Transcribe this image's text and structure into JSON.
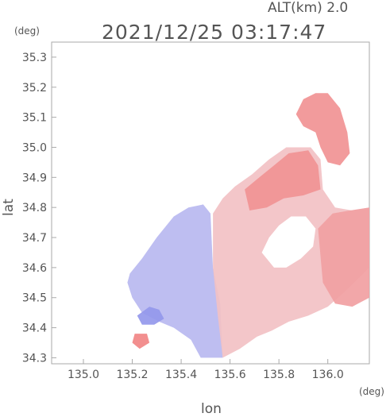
{
  "header": {
    "alt_label": "ALT(km) 2.0",
    "datetime": "2021/12/25 03:17:47"
  },
  "colors": {
    "positive": "#f06a6a",
    "negative": "#7c82ea",
    "neutral": "#f3f0f5",
    "frame": "#aaaaaa",
    "text": "#555555"
  },
  "chart_data": {
    "type": "heatmap",
    "title": "2021/12/25 03:17:47",
    "subtitle": "ALT(km) 2.0",
    "xlabel": "lon",
    "ylabel": "lat",
    "x_unit": "(deg)",
    "y_unit": "(deg)",
    "xlim": [
      134.87,
      136.17
    ],
    "ylim": [
      34.28,
      35.35
    ],
    "x_ticks": [
      135.0,
      135.2,
      135.4,
      135.6,
      135.8,
      136.0
    ],
    "x_tick_labels": [
      "135.0",
      "135.2",
      "135.4",
      "135.6",
      "135.8",
      "136.0"
    ],
    "y_ticks": [
      34.3,
      34.4,
      34.5,
      34.6,
      34.7,
      34.8,
      34.9,
      35.0,
      35.1,
      35.2,
      35.3
    ],
    "y_tick_labels": [
      "34.3",
      "34.4",
      "34.5",
      "34.6",
      "34.7",
      "34.8",
      "34.9",
      "35.0",
      "35.1",
      "35.2",
      "35.3"
    ],
    "grid": false,
    "colorscale": "diverging blue-white-red (radial velocity)",
    "regions": [
      {
        "name": "approaching (blue)",
        "sign": -1,
        "value": -0.5,
        "points": [
          [
            135.19,
            34.58
          ],
          [
            135.24,
            34.63
          ],
          [
            135.3,
            34.7
          ],
          [
            135.37,
            34.77
          ],
          [
            135.43,
            34.8
          ],
          [
            135.49,
            34.81
          ],
          [
            135.52,
            34.78
          ],
          [
            135.53,
            34.6
          ],
          [
            135.56,
            34.48
          ],
          [
            135.57,
            34.3
          ],
          [
            135.48,
            34.3
          ],
          [
            135.44,
            34.36
          ],
          [
            135.37,
            34.4
          ],
          [
            135.31,
            34.42
          ],
          [
            135.24,
            34.45
          ],
          [
            135.2,
            34.5
          ],
          [
            135.18,
            34.55
          ]
        ]
      },
      {
        "name": "receding sector (light red)",
        "sign": 1,
        "value": 0.35,
        "points": [
          [
            135.53,
            34.78
          ],
          [
            135.57,
            34.83
          ],
          [
            135.62,
            34.87
          ],
          [
            135.69,
            34.91
          ],
          [
            135.76,
            34.96
          ],
          [
            135.83,
            35.0
          ],
          [
            135.93,
            35.0
          ],
          [
            135.97,
            34.96
          ],
          [
            135.98,
            34.86
          ],
          [
            136.03,
            34.8
          ],
          [
            136.1,
            34.79
          ],
          [
            136.17,
            34.8
          ],
          [
            136.17,
            34.6
          ],
          [
            136.07,
            34.52
          ],
          [
            136.0,
            34.47
          ],
          [
            135.92,
            34.44
          ],
          [
            135.84,
            34.42
          ],
          [
            135.77,
            34.39
          ],
          [
            135.71,
            34.37
          ],
          [
            135.64,
            34.33
          ],
          [
            135.57,
            34.3
          ],
          [
            135.55,
            34.44
          ],
          [
            135.53,
            34.6
          ]
        ]
      },
      {
        "name": "receding core (red)",
        "sign": 1,
        "value": 0.7,
        "points": [
          [
            135.66,
            34.86
          ],
          [
            135.72,
            34.9
          ],
          [
            135.78,
            34.94
          ],
          [
            135.84,
            34.98
          ],
          [
            135.92,
            34.99
          ],
          [
            135.96,
            34.94
          ],
          [
            135.97,
            34.86
          ],
          [
            135.9,
            34.84
          ],
          [
            135.82,
            34.83
          ],
          [
            135.75,
            34.8
          ],
          [
            135.68,
            34.79
          ]
        ]
      },
      {
        "name": "receding northern band (red)",
        "sign": 1,
        "value": 0.7,
        "points": [
          [
            135.87,
            35.11
          ],
          [
            135.9,
            35.16
          ],
          [
            135.95,
            35.18
          ],
          [
            136.0,
            35.18
          ],
          [
            136.05,
            35.13
          ],
          [
            136.08,
            35.05
          ],
          [
            136.09,
            34.98
          ],
          [
            136.05,
            34.94
          ],
          [
            136.0,
            34.95
          ],
          [
            135.97,
            35.0
          ],
          [
            135.95,
            35.05
          ],
          [
            135.9,
            35.07
          ]
        ]
      },
      {
        "name": "receding eastern band (red)",
        "sign": 1,
        "value": 0.6,
        "points": [
          [
            135.96,
            34.73
          ],
          [
            136.02,
            34.78
          ],
          [
            136.09,
            34.79
          ],
          [
            136.17,
            34.8
          ],
          [
            136.17,
            34.5
          ],
          [
            136.1,
            34.47
          ],
          [
            136.03,
            34.48
          ],
          [
            135.98,
            34.55
          ]
        ]
      },
      {
        "name": "clutter blue",
        "sign": -1,
        "value": -0.8,
        "points": [
          [
            135.22,
            34.44
          ],
          [
            135.27,
            34.47
          ],
          [
            135.31,
            34.46
          ],
          [
            135.33,
            34.43
          ],
          [
            135.29,
            34.41
          ],
          [
            135.24,
            34.41
          ]
        ]
      },
      {
        "name": "clutter red",
        "sign": 1,
        "value": 0.8,
        "points": [
          [
            135.21,
            34.38
          ],
          [
            135.26,
            34.38
          ],
          [
            135.27,
            34.35
          ],
          [
            135.23,
            34.33
          ],
          [
            135.2,
            34.35
          ]
        ]
      }
    ],
    "gaps": [
      {
        "name": "no-echo interior",
        "points": [
          [
            135.73,
            34.65
          ],
          [
            135.76,
            34.7
          ],
          [
            135.8,
            34.74
          ],
          [
            135.85,
            34.77
          ],
          [
            135.91,
            34.77
          ],
          [
            135.95,
            34.73
          ],
          [
            135.94,
            34.67
          ],
          [
            135.89,
            34.63
          ],
          [
            135.83,
            34.6
          ],
          [
            135.78,
            34.6
          ]
        ]
      }
    ]
  }
}
